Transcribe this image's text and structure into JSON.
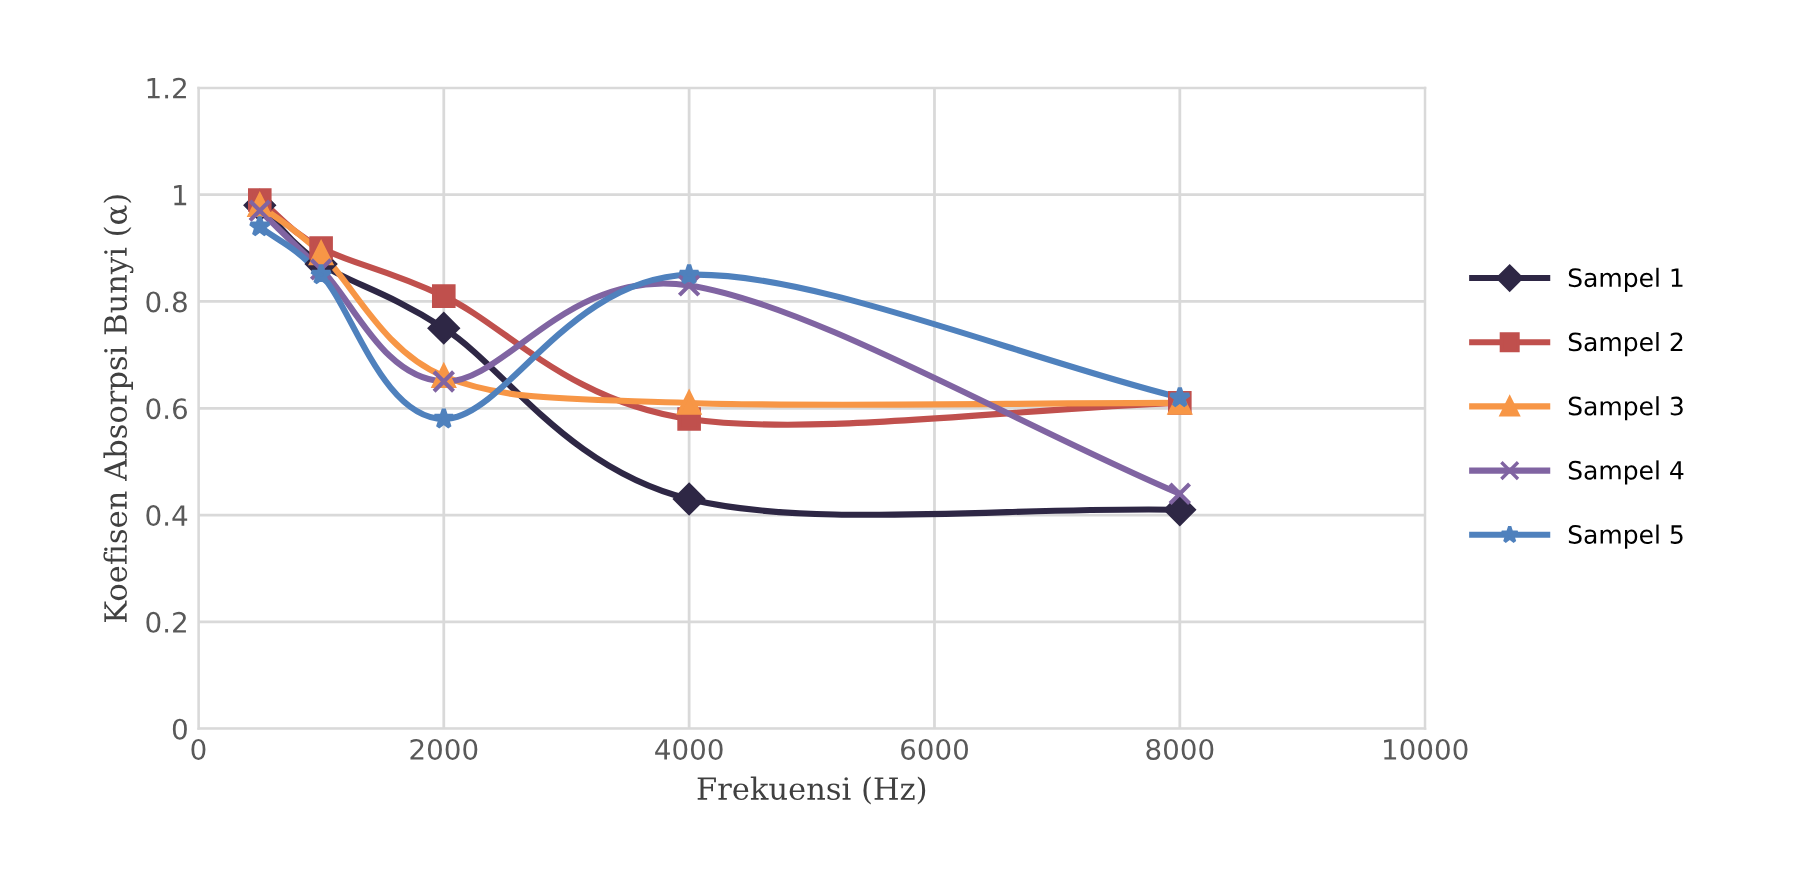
{
  "chart_data": {
    "type": "line",
    "xlabel": "Frekuensi (Hz)",
    "ylabel": "Koefisen Absorpsi Bunyi (α)",
    "x": [
      500,
      1000,
      2000,
      4000,
      8000
    ],
    "xlim": [
      0,
      10000
    ],
    "xticks": [
      0,
      2000,
      4000,
      6000,
      8000,
      10000
    ],
    "ylim": [
      0,
      1.2
    ],
    "yticks": [
      0,
      0.2,
      0.4,
      0.6,
      0.8,
      1,
      1.2
    ],
    "grid": true,
    "legend": "right",
    "line_style": "solid",
    "series": [
      {
        "name": "Sampel 1",
        "color": "#2e2745",
        "marker": "diamond",
        "values": [
          0.98,
          0.87,
          0.75,
          0.43,
          0.41
        ]
      },
      {
        "name": "Sampel 2",
        "color": "#c0504d",
        "marker": "square",
        "values": [
          0.99,
          0.9,
          0.81,
          0.58,
          0.61
        ]
      },
      {
        "name": "Sampel 3",
        "color": "#f79646",
        "marker": "triangle",
        "values": [
          0.98,
          0.89,
          0.66,
          0.61,
          0.61
        ]
      },
      {
        "name": "Sampel 4",
        "color": "#8064a2",
        "marker": "cross",
        "values": [
          0.97,
          0.86,
          0.65,
          0.83,
          0.44
        ]
      },
      {
        "name": "Sampel 5",
        "color": "#4f81bd",
        "marker": "star",
        "values": [
          0.94,
          0.85,
          0.58,
          0.85,
          0.62
        ]
      }
    ]
  }
}
